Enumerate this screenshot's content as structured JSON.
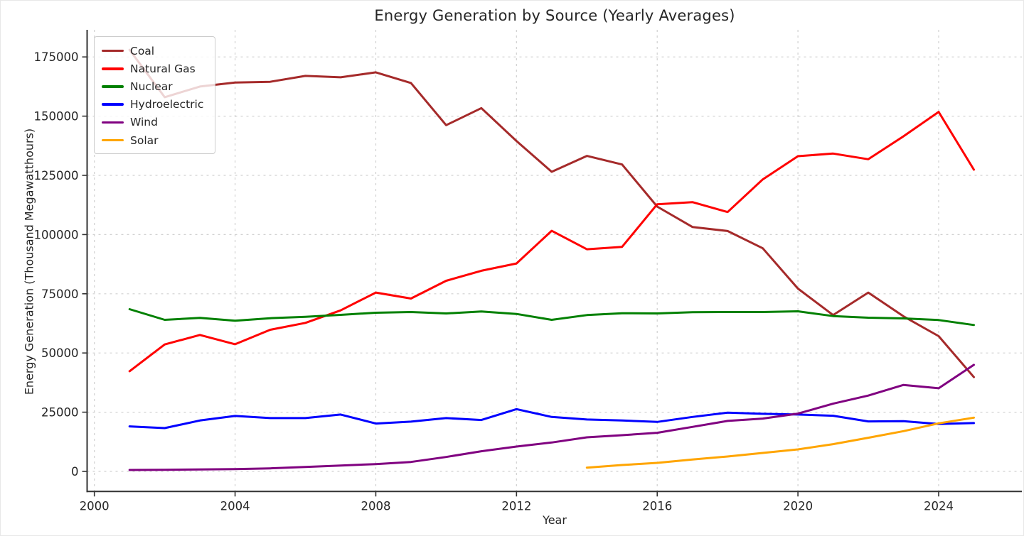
{
  "title": "Energy Generation by Source (Yearly Averages)",
  "chart_data": {
    "type": "line",
    "title": "Energy Generation by Source (Yearly Averages)",
    "xlabel": "Year",
    "ylabel": "Energy Generation (Thousand Megawatthours)",
    "xlim": [
      1999.8,
      2026.4
    ],
    "ylim": [
      -8400,
      186500
    ],
    "xticks": [
      2000,
      2004,
      2008,
      2012,
      2016,
      2020,
      2024
    ],
    "yticks": [
      0,
      25000,
      50000,
      75000,
      100000,
      125000,
      150000,
      175000
    ],
    "grid": true,
    "grid_style": "dashed",
    "legend_position": "upper-left",
    "x": [
      2001,
      2002,
      2003,
      2004,
      2005,
      2006,
      2007,
      2008,
      2009,
      2010,
      2011,
      2012,
      2013,
      2014,
      2015,
      2016,
      2017,
      2018,
      2019,
      2020,
      2021,
      2022,
      2023,
      2024,
      2025
    ],
    "series": [
      {
        "name": "Coal",
        "color": "#A52A2A",
        "values": [
          178000,
          158000,
          162500,
          164200,
          164500,
          167000,
          166400,
          168500,
          164000,
          146200,
          153400,
          139500,
          126500,
          133200,
          129600,
          111800,
          103200,
          101500,
          94200,
          77200,
          66000,
          75500,
          65500,
          57100,
          39800
        ]
      },
      {
        "name": "Natural Gas",
        "color": "#FF0000",
        "values": [
          42300,
          53600,
          57600,
          53700,
          59800,
          62700,
          68000,
          75500,
          73000,
          80500,
          84700,
          87800,
          101600,
          93800,
          94800,
          112800,
          113700,
          109500,
          123300,
          133100,
          134200,
          131800,
          141500,
          151800,
          127400
        ]
      },
      {
        "name": "Nuclear",
        "color": "#008000",
        "values": [
          68500,
          64000,
          64800,
          63600,
          64700,
          65300,
          66100,
          67000,
          67300,
          66700,
          67500,
          66500,
          64000,
          66000,
          66800,
          66700,
          67200,
          67300,
          67300,
          67600,
          65600,
          64900,
          64600,
          63900,
          61800
        ]
      },
      {
        "name": "Hydroelectric",
        "color": "#0000FF",
        "values": [
          19000,
          18300,
          21500,
          23400,
          22500,
          22500,
          24000,
          20200,
          21000,
          22500,
          21700,
          26300,
          23000,
          21900,
          21500,
          20900,
          23000,
          24800,
          24300,
          24000,
          23500,
          21100,
          21200,
          20000,
          20400
        ]
      },
      {
        "name": "Wind",
        "color": "#800080",
        "values": [
          600,
          700,
          800,
          1000,
          1300,
          1900,
          2500,
          3100,
          4000,
          6100,
          8500,
          10500,
          12200,
          14400,
          15300,
          16300,
          18800,
          21300,
          22300,
          24400,
          28600,
          32000,
          36500,
          35100,
          45000
        ]
      },
      {
        "name": "Solar",
        "color": "#FFA500",
        "values": [
          null,
          null,
          null,
          null,
          null,
          null,
          null,
          null,
          null,
          null,
          null,
          null,
          null,
          1600,
          2700,
          3600,
          5000,
          6300,
          7800,
          9300,
          11500,
          14200,
          17000,
          20300,
          22700
        ]
      }
    ]
  },
  "colors": {
    "text": "#262626",
    "spine": "#333333",
    "gridline": "#c9c9c9",
    "legend_border": "#cccccc"
  }
}
